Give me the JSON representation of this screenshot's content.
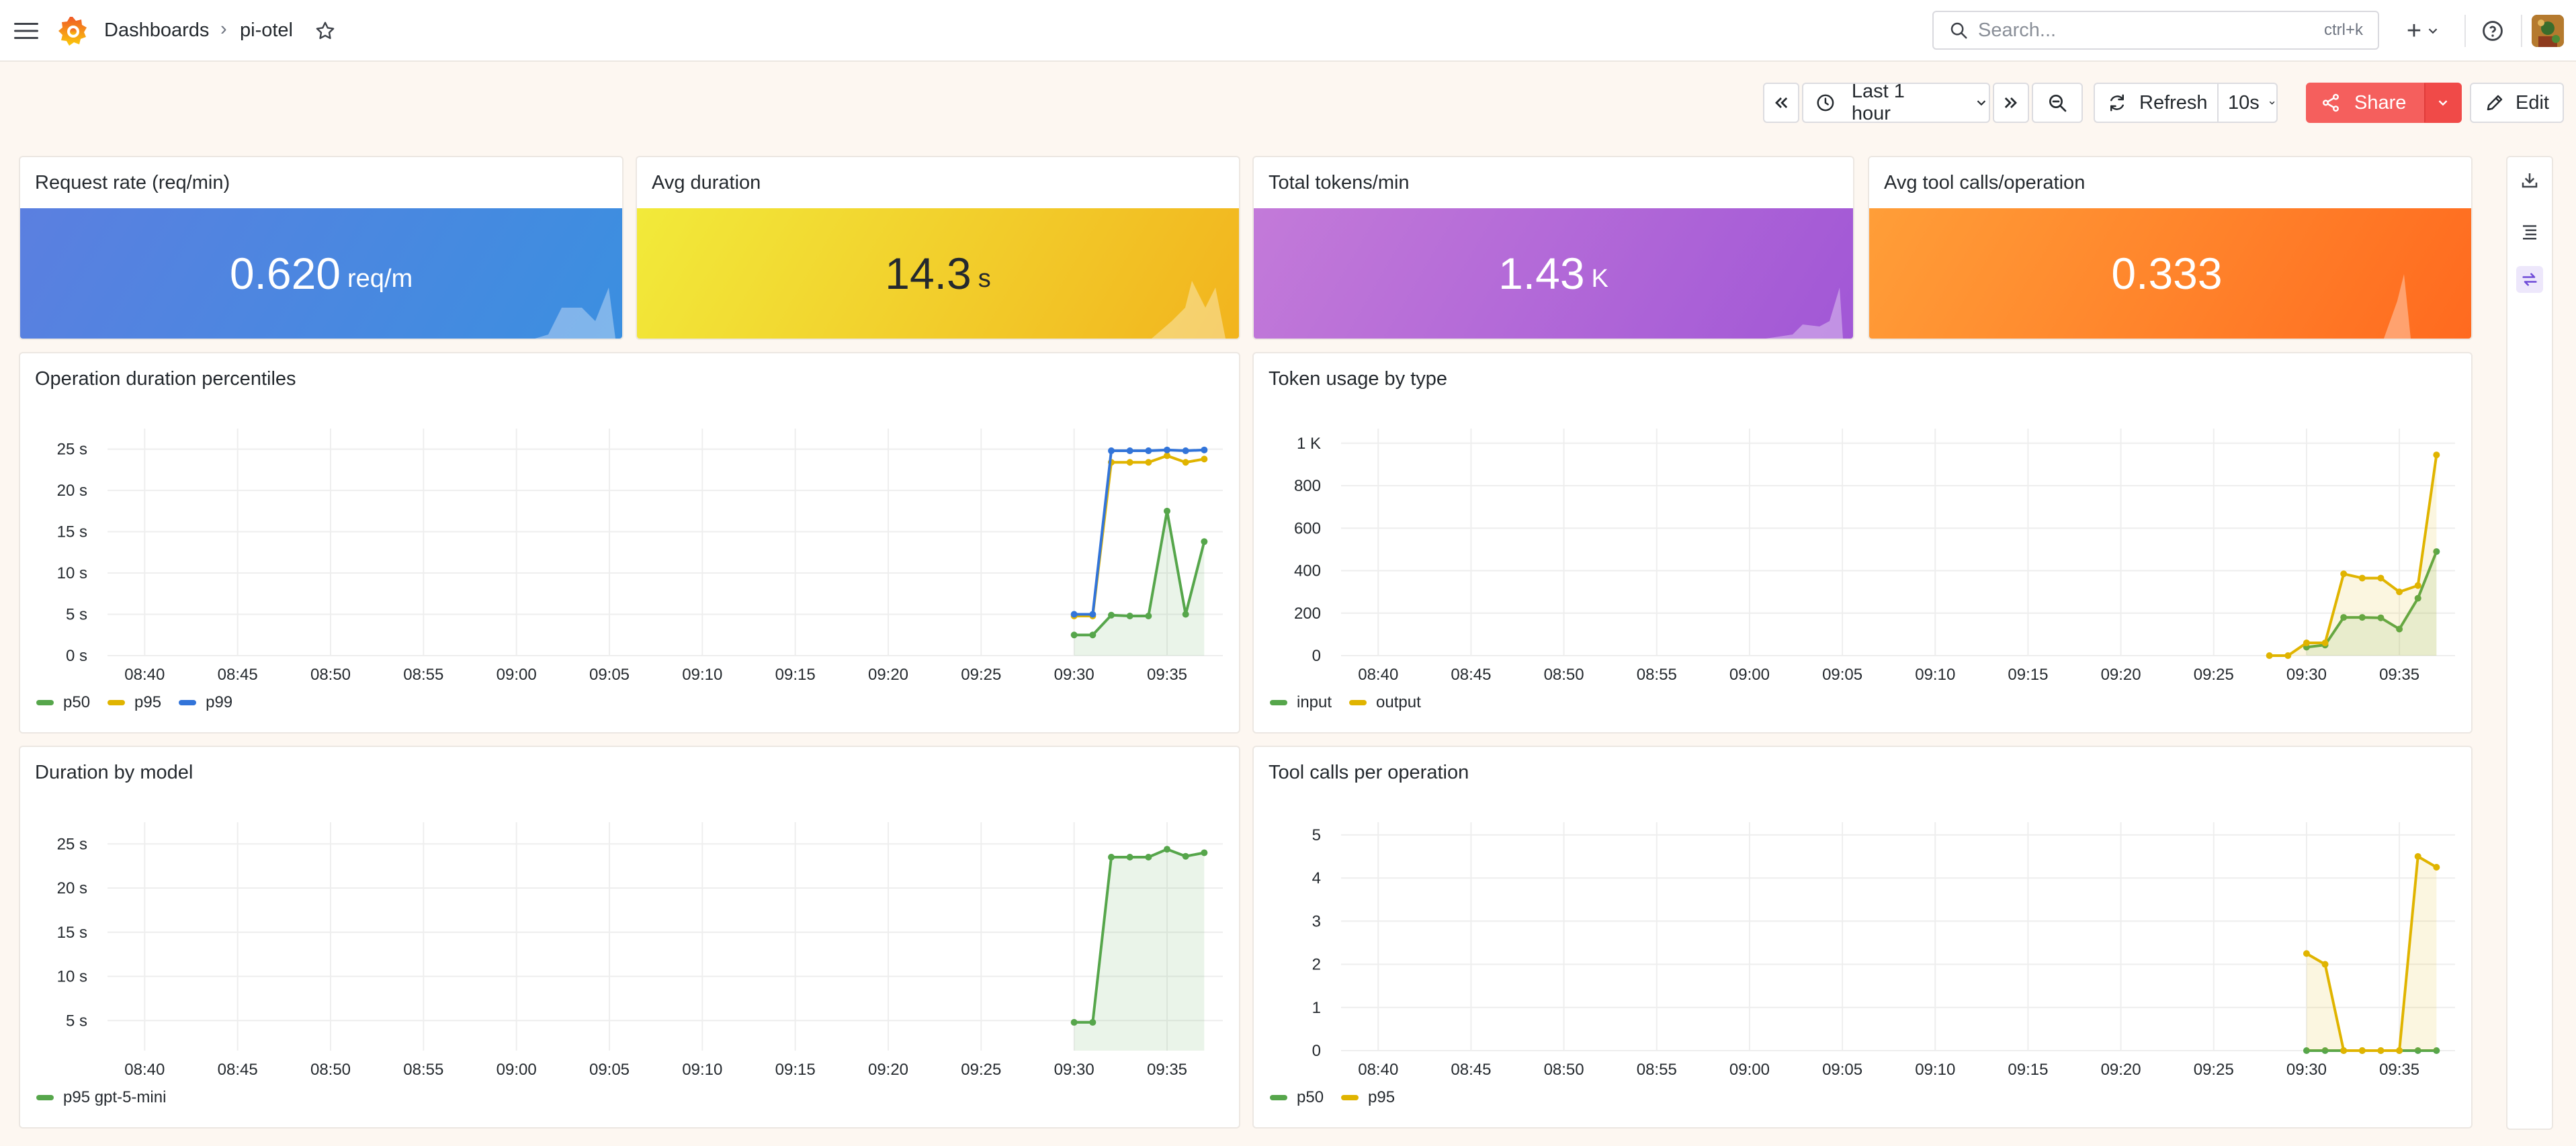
{
  "topbar": {
    "breadcrumb_root": "Dashboards",
    "breadcrumb_sep": "›",
    "breadcrumb_current": "pi-otel",
    "search_placeholder": "Search...",
    "search_shortcut": "ctrl+k",
    "add_label": "+"
  },
  "toolbar": {
    "time_range": "Last 1 hour",
    "refresh_label": "Refresh",
    "refresh_interval": "10s",
    "share_label": "Share",
    "edit_label": "Edit"
  },
  "stats": [
    {
      "title": "Request rate (req/min)",
      "value": "0.620",
      "unit": "req/m",
      "color_from": "#5b7fe0",
      "color_to": "#3b8fe0",
      "text_color": "#ffffff"
    },
    {
      "title": "Avg duration",
      "value": "14.3",
      "unit": "s",
      "color_from": "#f2ea3a",
      "color_to": "#f2b41e",
      "text_color": "#24292e"
    },
    {
      "title": "Total tokens/min",
      "value": "1.43",
      "unit": "K",
      "color_from": "#c37ad9",
      "color_to": "#a157d6",
      "text_color": "#ffffff"
    },
    {
      "title": "Avg tool calls/operation",
      "value": "0.333",
      "unit": "",
      "color_from": "#ff9e38",
      "color_to": "#ff6a1f",
      "text_color": "#ffffff"
    }
  ],
  "chart_data": [
    {
      "type": "line",
      "title": "Operation duration percentiles",
      "x_ticks": [
        "08:40",
        "08:45",
        "08:50",
        "08:55",
        "09:00",
        "09:05",
        "09:10",
        "09:15",
        "09:20",
        "09:25",
        "09:30",
        "09:35"
      ],
      "y_ticks": [
        "0 s",
        "5 s",
        "10 s",
        "15 s",
        "20 s",
        "25 s"
      ],
      "ylim": [
        0,
        27
      ],
      "xlim": [
        "08:38",
        "09:38"
      ],
      "series": [
        {
          "name": "p50",
          "color": "#56a64b",
          "fill": true,
          "points": [
            [
              "09:30",
              2.5
            ],
            [
              "09:31",
              2.5
            ],
            [
              "09:32",
              4.9
            ],
            [
              "09:33",
              4.8
            ],
            [
              "09:34",
              4.8
            ],
            [
              "09:35",
              17.5
            ],
            [
              "09:36",
              5.0
            ],
            [
              "09:37",
              13.8
            ]
          ]
        },
        {
          "name": "p95",
          "color": "#e0b400",
          "fill": false,
          "points": [
            [
              "09:30",
              4.8
            ],
            [
              "09:31",
              4.8
            ],
            [
              "09:32",
              23.4
            ],
            [
              "09:33",
              23.4
            ],
            [
              "09:34",
              23.4
            ],
            [
              "09:35",
              24.2
            ],
            [
              "09:36",
              23.4
            ],
            [
              "09:37",
              23.8
            ]
          ]
        },
        {
          "name": "p99",
          "color": "#3274d9",
          "fill": false,
          "points": [
            [
              "09:30",
              5.0
            ],
            [
              "09:31",
              5.0
            ],
            [
              "09:32",
              24.8
            ],
            [
              "09:33",
              24.8
            ],
            [
              "09:34",
              24.8
            ],
            [
              "09:35",
              24.9
            ],
            [
              "09:36",
              24.8
            ],
            [
              "09:37",
              24.9
            ]
          ]
        }
      ]
    },
    {
      "type": "line",
      "title": "Token usage by type",
      "x_ticks": [
        "08:40",
        "08:45",
        "08:50",
        "08:55",
        "09:00",
        "09:05",
        "09:10",
        "09:15",
        "09:20",
        "09:25",
        "09:30",
        "09:35"
      ],
      "y_ticks": [
        "0",
        "200",
        "400",
        "600",
        "800",
        "1 K"
      ],
      "ylim": [
        0,
        1050
      ],
      "xlim": [
        "08:38",
        "09:38"
      ],
      "series": [
        {
          "name": "input",
          "color": "#56a64b",
          "fill": true,
          "points": [
            [
              "09:30",
              40
            ],
            [
              "09:31",
              50
            ],
            [
              "09:32",
              180
            ],
            [
              "09:33",
              180
            ],
            [
              "09:34",
              178
            ],
            [
              "09:35",
              125
            ],
            [
              "09:36",
              270
            ],
            [
              "09:37",
              490
            ]
          ]
        },
        {
          "name": "output",
          "color": "#e0b400",
          "fill": true,
          "points": [
            [
              "09:28",
              0
            ],
            [
              "09:29",
              0
            ],
            [
              "09:30",
              60
            ],
            [
              "09:31",
              60
            ],
            [
              "09:32",
              385
            ],
            [
              "09:33",
              365
            ],
            [
              "09:34",
              365
            ],
            [
              "09:35",
              300
            ],
            [
              "09:36",
              330
            ],
            [
              "09:37",
              945
            ]
          ]
        }
      ]
    },
    {
      "type": "line",
      "title": "Duration by model",
      "x_ticks": [
        "08:40",
        "08:45",
        "08:50",
        "08:55",
        "09:00",
        "09:05",
        "09:10",
        "09:15",
        "09:20",
        "09:25",
        "09:30",
        "09:35"
      ],
      "y_ticks": [
        "5 s",
        "10 s",
        "15 s",
        "20 s",
        "25 s"
      ],
      "ylim": [
        1.6,
        27
      ],
      "xlim": [
        "08:38",
        "09:38"
      ],
      "series": [
        {
          "name": "p95 gpt-5-mini",
          "color": "#56a64b",
          "fill": true,
          "points": [
            [
              "09:30",
              4.8
            ],
            [
              "09:31",
              4.8
            ],
            [
              "09:32",
              23.5
            ],
            [
              "09:33",
              23.5
            ],
            [
              "09:34",
              23.5
            ],
            [
              "09:35",
              24.4
            ],
            [
              "09:36",
              23.6
            ],
            [
              "09:37",
              24.0
            ]
          ]
        }
      ]
    },
    {
      "type": "line",
      "title": "Tool calls per operation",
      "x_ticks": [
        "08:40",
        "08:45",
        "08:50",
        "08:55",
        "09:00",
        "09:05",
        "09:10",
        "09:15",
        "09:20",
        "09:25",
        "09:30",
        "09:35"
      ],
      "y_ticks": [
        "0",
        "1",
        "2",
        "3",
        "4",
        "5"
      ],
      "ylim": [
        0,
        5.2
      ],
      "xlim": [
        "08:38",
        "09:38"
      ],
      "series": [
        {
          "name": "p50",
          "color": "#56a64b",
          "fill": false,
          "points": [
            [
              "09:30",
              0
            ],
            [
              "09:31",
              0
            ],
            [
              "09:32",
              0
            ],
            [
              "09:33",
              0
            ],
            [
              "09:34",
              0
            ],
            [
              "09:35",
              0
            ],
            [
              "09:36",
              0
            ],
            [
              "09:37",
              0
            ]
          ]
        },
        {
          "name": "p95",
          "color": "#e0b400",
          "fill": true,
          "points": [
            [
              "09:30",
              2.25
            ],
            [
              "09:31",
              2.0
            ],
            [
              "09:32",
              0
            ],
            [
              "09:33",
              0
            ],
            [
              "09:34",
              0
            ],
            [
              "09:35",
              0
            ],
            [
              "09:36",
              4.5
            ],
            [
              "09:37",
              4.25
            ]
          ]
        }
      ]
    }
  ]
}
